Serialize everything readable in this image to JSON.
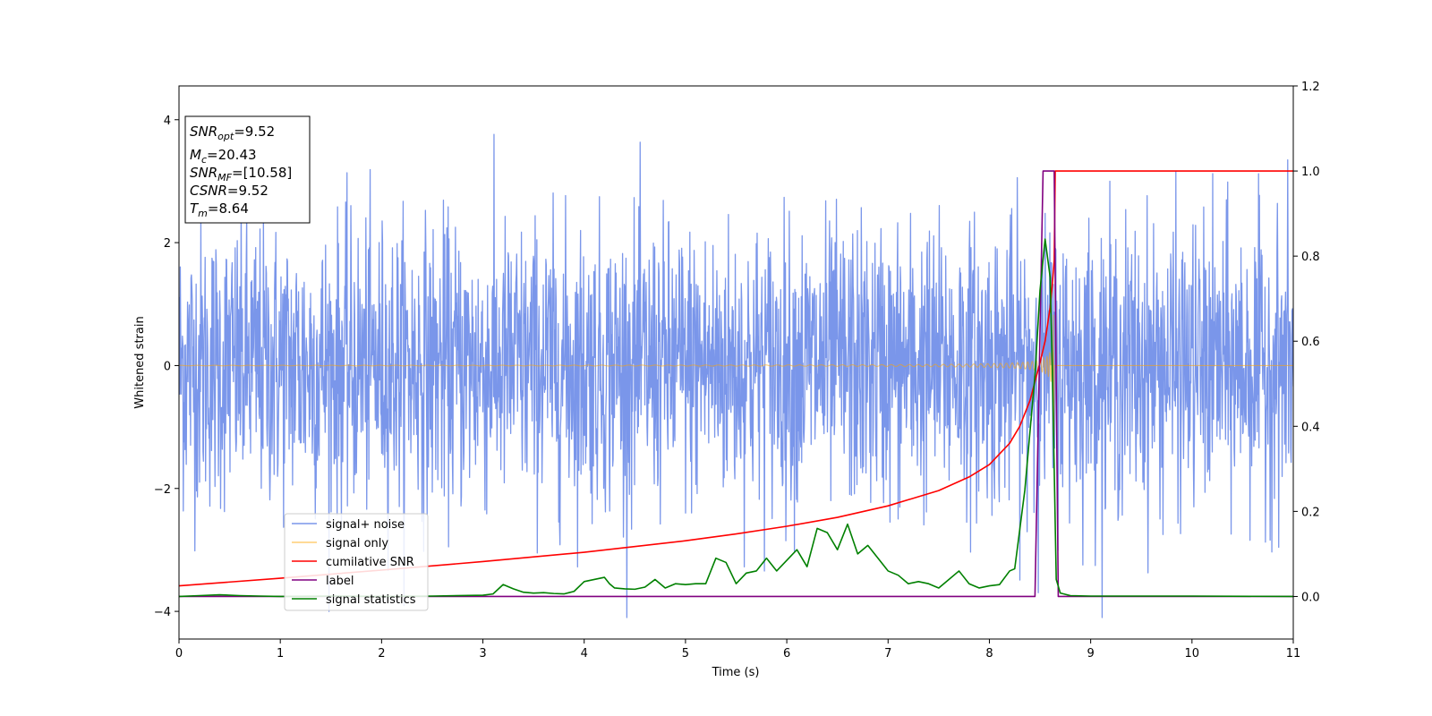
{
  "chart_data": {
    "type": "line",
    "xlabel": "Time (s)",
    "ylabel": "Whitened strain",
    "xlim": [
      0,
      11
    ],
    "ylim": [
      -4.45,
      4.55
    ],
    "y2lim": [
      -0.1,
      1.2
    ],
    "x_ticks": [
      "0",
      "1",
      "2",
      "3",
      "4",
      "5",
      "6",
      "7",
      "8",
      "9",
      "10",
      "11"
    ],
    "y_ticks": [
      "−4",
      "−2",
      "0",
      "2",
      "4"
    ],
    "y2_ticks": [
      "0.0",
      "0.2",
      "0.4",
      "0.6",
      "0.8",
      "1.0",
      "1.2"
    ],
    "grid": false,
    "legend_position": "lower-left",
    "annotation": {
      "snr_opt": {
        "base": "SNR",
        "sub": "opt",
        "value": "=9.52"
      },
      "mc": {
        "base": "M",
        "sub": "c",
        "value": "=20.43"
      },
      "snr_mf": {
        "base": "SNR",
        "sub": "MF",
        "value": "=[10.58]"
      },
      "csnr": {
        "base": "CSNR",
        "sub": "",
        "value": "=9.52"
      },
      "tm": {
        "base": "T",
        "sub": "m",
        "value": "=8.64"
      }
    },
    "series": [
      {
        "name": "signal+ noise",
        "color": "#4169e1",
        "axis": "left",
        "kind": "noise",
        "sigma": 1.0,
        "merger_time": 8.64
      },
      {
        "name": "signal only",
        "color": "#ffa500",
        "axis": "left",
        "kind": "chirp",
        "merger_time": 8.64,
        "peak_amplitude": 1.2
      },
      {
        "name": "cumilative SNR",
        "color": "#ff0000",
        "axis": "right",
        "x": [
          0,
          1,
          2,
          3,
          4,
          5,
          5.5,
          6,
          6.5,
          7,
          7.5,
          7.8,
          8,
          8.2,
          8.3,
          8.4,
          8.5,
          8.55,
          8.6,
          8.62,
          8.64,
          8.65,
          9,
          10,
          11
        ],
        "values": [
          0.025,
          0.043,
          0.062,
          0.082,
          0.104,
          0.131,
          0.147,
          0.165,
          0.186,
          0.213,
          0.249,
          0.281,
          0.31,
          0.36,
          0.4,
          0.46,
          0.55,
          0.6,
          0.68,
          0.73,
          0.79,
          1.0,
          1.0,
          1.0,
          1.0
        ]
      },
      {
        "name": "label",
        "color": "#800080",
        "axis": "right",
        "x": [
          0,
          8.45,
          8.53,
          8.64,
          8.68,
          11
        ],
        "values": [
          0,
          0,
          1,
          1,
          0,
          0
        ]
      },
      {
        "name": "signal statistics",
        "color": "#008000",
        "axis": "right",
        "x": [
          0,
          0.2,
          0.4,
          0.6,
          0.8,
          1.0,
          1.5,
          2.0,
          2.5,
          3.0,
          3.1,
          3.2,
          3.3,
          3.4,
          3.5,
          3.6,
          3.7,
          3.8,
          3.9,
          4.0,
          4.1,
          4.2,
          4.25,
          4.3,
          4.4,
          4.5,
          4.6,
          4.7,
          4.8,
          4.9,
          5.0,
          5.1,
          5.2,
          5.3,
          5.4,
          5.5,
          5.6,
          5.7,
          5.8,
          5.9,
          6.0,
          6.1,
          6.2,
          6.3,
          6.4,
          6.5,
          6.6,
          6.7,
          6.8,
          6.9,
          7.0,
          7.1,
          7.2,
          7.3,
          7.4,
          7.5,
          7.6,
          7.7,
          7.8,
          7.9,
          8.0,
          8.1,
          8.2,
          8.25,
          8.35,
          8.45,
          8.5,
          8.55,
          8.6,
          8.62,
          8.64,
          8.66,
          8.7,
          8.8,
          9.0,
          10.0,
          11.0
        ],
        "values": [
          0,
          0.002,
          0.004,
          0.002,
          0.001,
          0,
          0.001,
          0,
          0.001,
          0.003,
          0.006,
          0.028,
          0.018,
          0.01,
          0.008,
          0.009,
          0.007,
          0.006,
          0.012,
          0.035,
          0.04,
          0.045,
          0.03,
          0.02,
          0.018,
          0.017,
          0.022,
          0.04,
          0.02,
          0.03,
          0.028,
          0.03,
          0.03,
          0.09,
          0.08,
          0.03,
          0.055,
          0.06,
          0.09,
          0.06,
          0.085,
          0.11,
          0.07,
          0.16,
          0.15,
          0.11,
          0.17,
          0.1,
          0.12,
          0.09,
          0.06,
          0.05,
          0.03,
          0.035,
          0.03,
          0.02,
          0.04,
          0.06,
          0.03,
          0.02,
          0.025,
          0.028,
          0.06,
          0.065,
          0.25,
          0.52,
          0.72,
          0.84,
          0.75,
          0.55,
          0.3,
          0.04,
          0.008,
          0.002,
          0.001,
          0.001,
          0
        ]
      }
    ]
  }
}
